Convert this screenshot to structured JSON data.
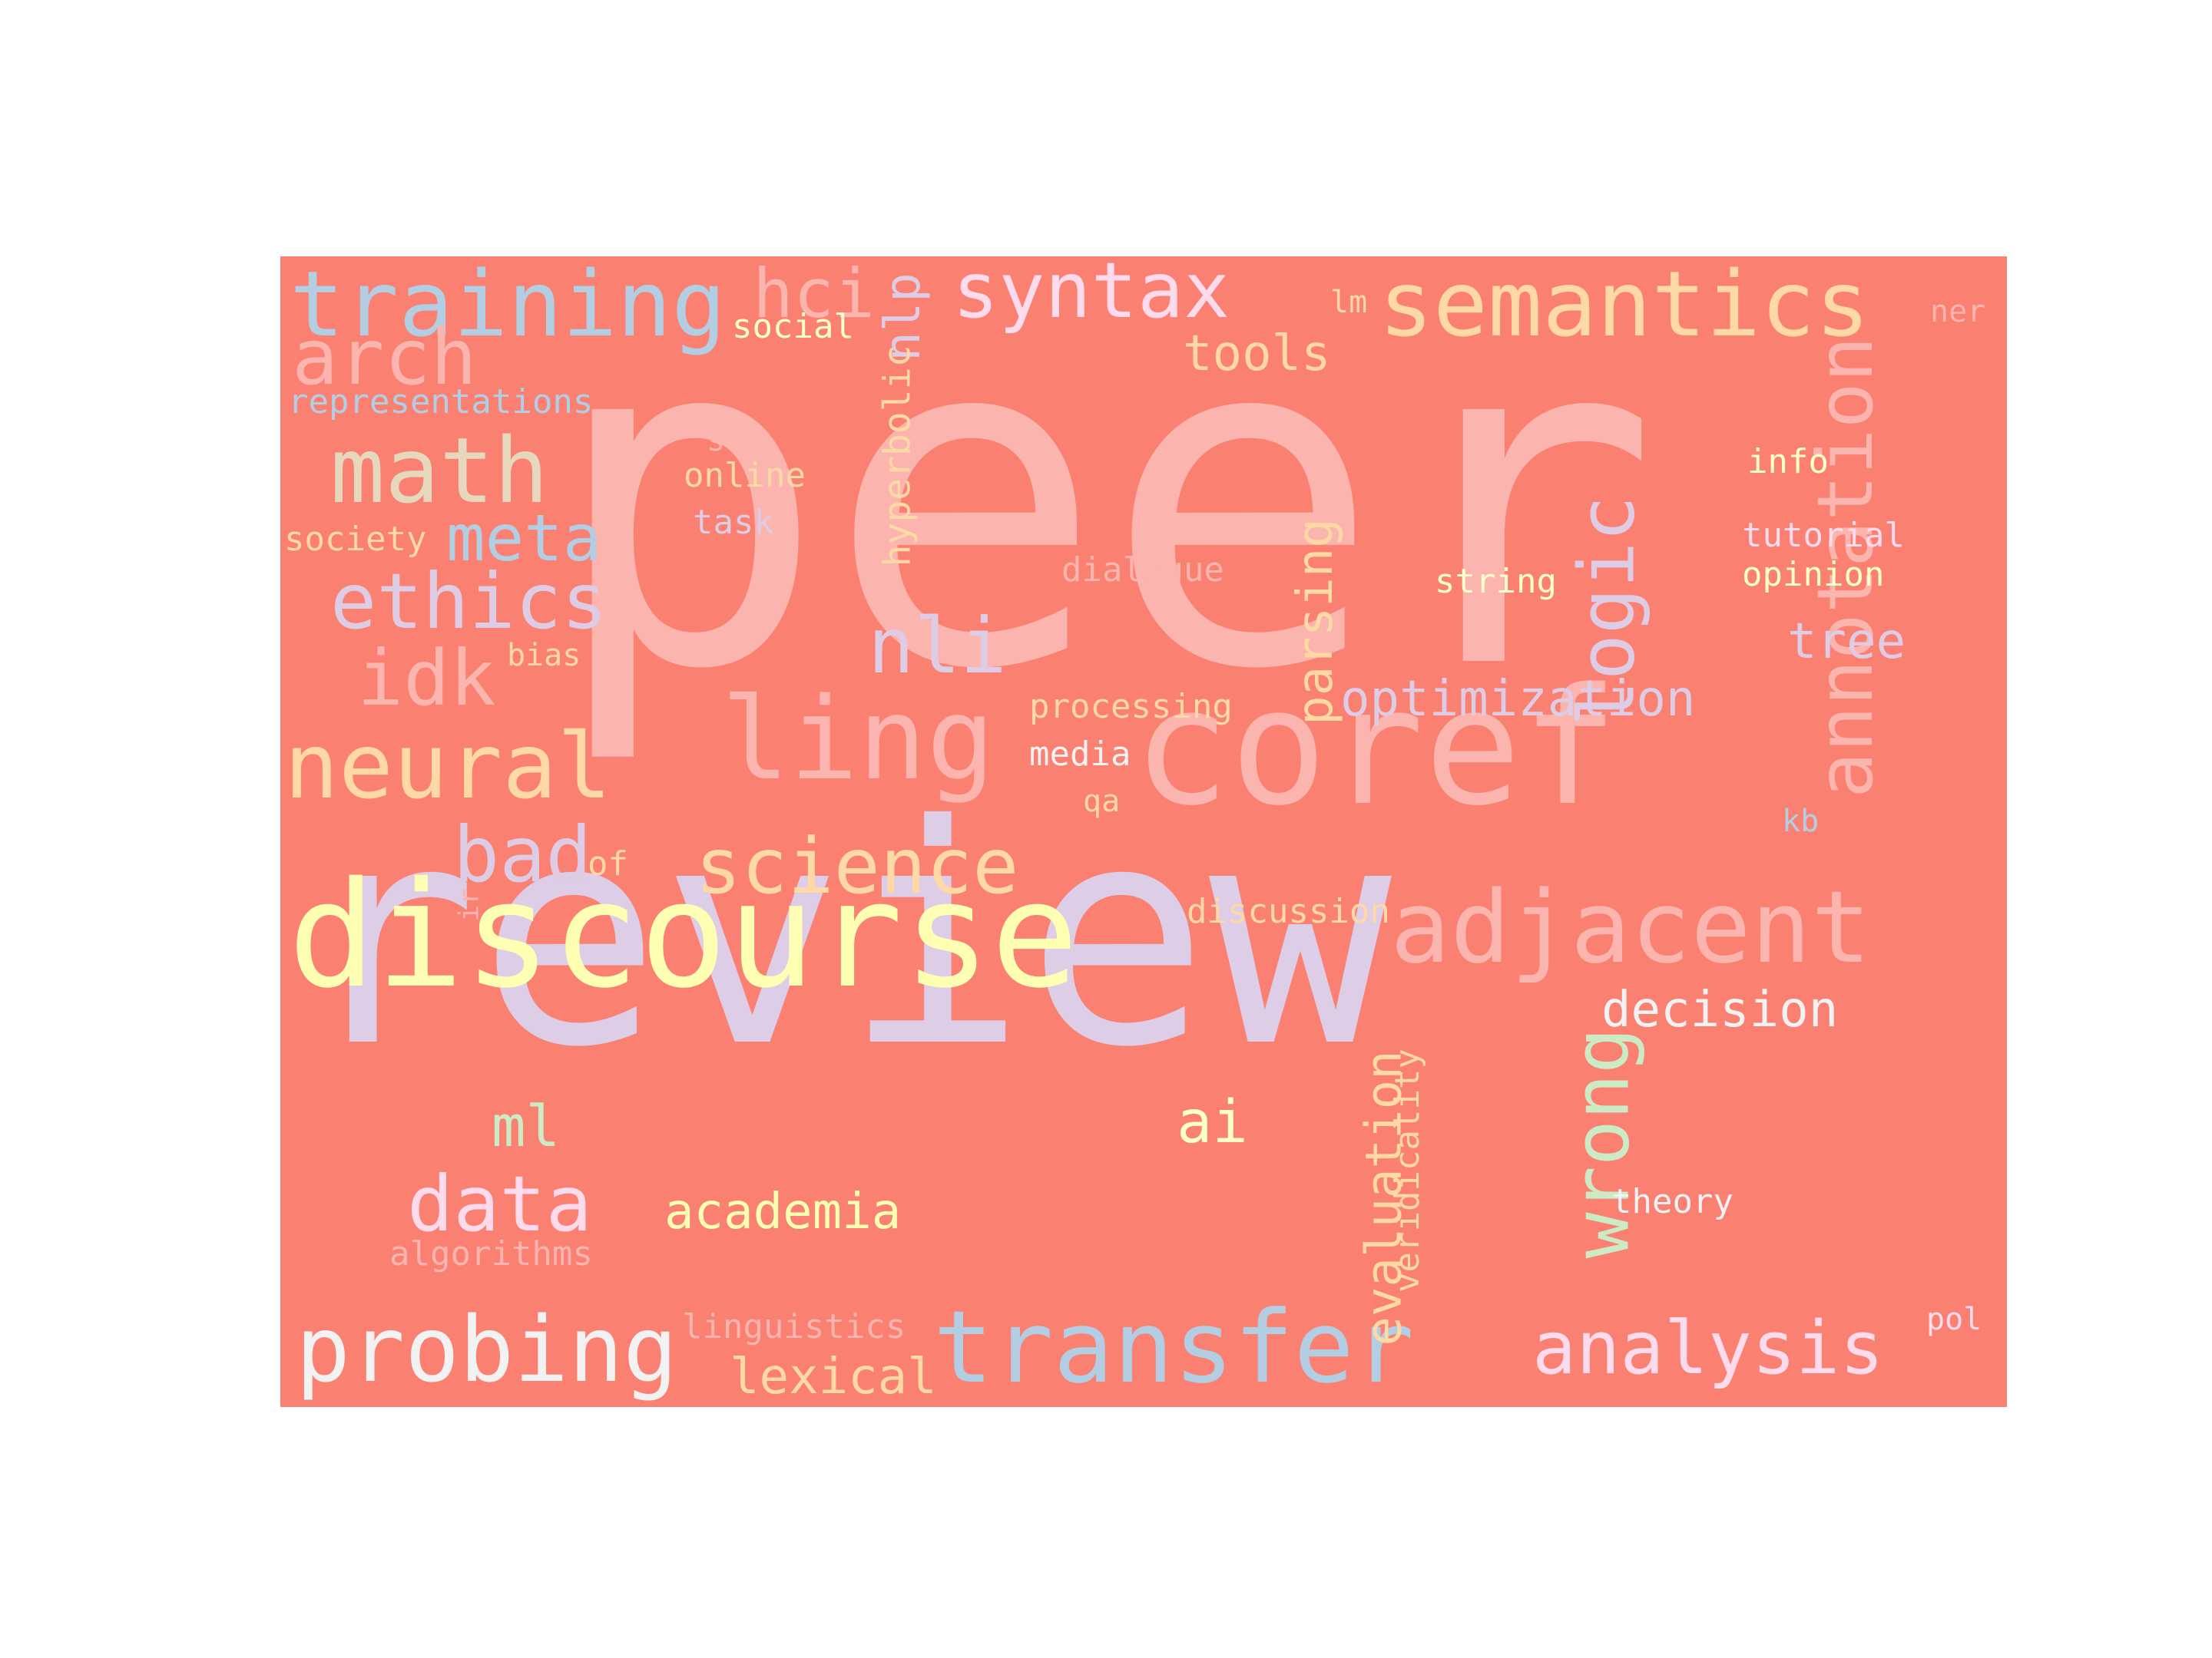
{
  "background_color": "#fa8072",
  "words": [
    {
      "text": "review",
      "color": "#ddcde6"
    },
    {
      "text": "peer",
      "color": "#fbb4ae"
    },
    {
      "text": "coref",
      "color": "#fbb4ae"
    },
    {
      "text": "discourse",
      "color": "#ffffb3"
    },
    {
      "text": "adjacent",
      "color": "#fbb4ae"
    },
    {
      "text": "transfer",
      "color": "#b3cde3"
    },
    {
      "text": "training",
      "color": "#b3cde3"
    },
    {
      "text": "semantics",
      "color": "#fed9a6"
    },
    {
      "text": "annotation",
      "color": "#fbb4ae"
    },
    {
      "text": "ling",
      "color": "#fbb4ae"
    },
    {
      "text": "probing",
      "color": "#f2f2f2"
    },
    {
      "text": "science",
      "color": "#fed9a6"
    },
    {
      "text": "analysis",
      "color": "#fddaec"
    },
    {
      "text": "syntax",
      "color": "#fddaec"
    },
    {
      "text": "logic",
      "color": "#decbe4"
    },
    {
      "text": "math",
      "color": "#e5d8bd"
    },
    {
      "text": "neural",
      "color": "#fed9a6"
    },
    {
      "text": "wrong",
      "color": "#ccebc5"
    },
    {
      "text": "arch",
      "color": "#fbb4ae"
    },
    {
      "text": "ethics",
      "color": "#decbe4"
    },
    {
      "text": "data",
      "color": "#fddaec"
    },
    {
      "text": "nli",
      "color": "#decbe4"
    },
    {
      "text": "idk",
      "color": "#fbb4ae"
    },
    {
      "text": "hci",
      "color": "#fbb4ae"
    },
    {
      "text": "bad",
      "color": "#decbe4"
    },
    {
      "text": "meta",
      "color": "#b3cde3"
    },
    {
      "text": "evaluation",
      "color": "#fed9a6"
    },
    {
      "text": "decision",
      "color": "#f2f2f2"
    },
    {
      "text": "optimization",
      "color": "#decbe4"
    },
    {
      "text": "academia",
      "color": "#ffffb3"
    },
    {
      "text": "ai",
      "color": "#ffffcc"
    },
    {
      "text": "ml",
      "color": "#ccebc5"
    },
    {
      "text": "lexical",
      "color": "#fed9a6"
    },
    {
      "text": "tools",
      "color": "#fed9a6"
    },
    {
      "text": "parsing",
      "color": "#fed9a6"
    },
    {
      "text": "nlp",
      "color": "#decbe4"
    },
    {
      "text": "tree",
      "color": "#decbe4"
    },
    {
      "text": "hyperbolic",
      "color": "#fed9a6"
    },
    {
      "text": "veridicality",
      "color": "#fed9a6"
    },
    {
      "text": "representations",
      "color": "#b3cde3"
    },
    {
      "text": "discussion",
      "color": "#fed9a6"
    },
    {
      "text": "processing",
      "color": "#fed9a6"
    },
    {
      "text": "linguistics",
      "color": "#fbb4ae"
    },
    {
      "text": "algorithms",
      "color": "#fbb4ae"
    },
    {
      "text": "social",
      "color": "#ffffcc"
    },
    {
      "text": "online",
      "color": "#fed9a6"
    },
    {
      "text": "society",
      "color": "#fed9a6"
    },
    {
      "text": "dialogue",
      "color": "#fbb4ae"
    },
    {
      "text": "string",
      "color": "#ffffcc"
    },
    {
      "text": "tutorial",
      "color": "#fddaec"
    },
    {
      "text": "opinion",
      "color": "#ffffcc"
    },
    {
      "text": "theory",
      "color": "#f2f2f2"
    },
    {
      "text": "media",
      "color": "#f2f2f2"
    },
    {
      "text": "info",
      "color": "#ffffcc"
    },
    {
      "text": "task",
      "color": "#decbe4"
    },
    {
      "text": "bias",
      "color": "#fed9a6"
    },
    {
      "text": "sci",
      "color": "#fbb4ae"
    },
    {
      "text": "of",
      "color": "#fed9a6"
    },
    {
      "text": "qa",
      "color": "#fed9a6"
    },
    {
      "text": "kb",
      "color": "#b3cde3"
    },
    {
      "text": "ir",
      "color": "#fbb4ae"
    },
    {
      "text": "lm",
      "color": "#fed9a6"
    },
    {
      "text": "ner",
      "color": "#fbb4ae"
    },
    {
      "text": "pol",
      "color": "#fddaec"
    }
  ]
}
